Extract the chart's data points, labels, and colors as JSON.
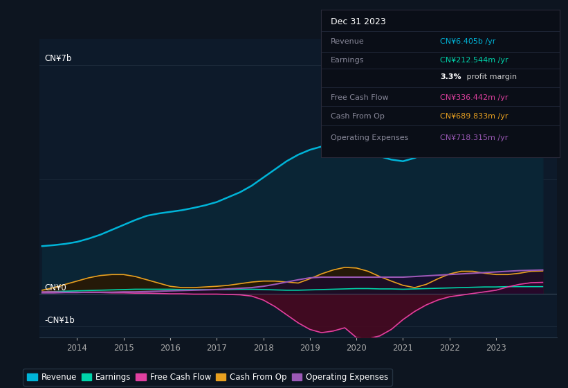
{
  "bg_color": "#0d1520",
  "plot_bg_color": "#0d1a2a",
  "title_box_bg": "#0a0e17",
  "title_box_border": "#2a2a3a",
  "ylabel_top": "CN¥7b",
  "ylabel_zero": "CN¥0",
  "ylabel_bottom": "-CN¥1b",
  "ylim": [
    -1.35,
    7.8
  ],
  "xlim": [
    2013.2,
    2024.3
  ],
  "years": [
    2013.25,
    2013.5,
    2013.75,
    2014.0,
    2014.25,
    2014.5,
    2014.75,
    2015.0,
    2015.25,
    2015.5,
    2015.75,
    2016.0,
    2016.25,
    2016.5,
    2016.75,
    2017.0,
    2017.25,
    2017.5,
    2017.75,
    2018.0,
    2018.25,
    2018.5,
    2018.75,
    2019.0,
    2019.25,
    2019.5,
    2019.75,
    2020.0,
    2020.25,
    2020.5,
    2020.75,
    2021.0,
    2021.25,
    2021.5,
    2021.75,
    2022.0,
    2022.25,
    2022.5,
    2022.75,
    2023.0,
    2023.25,
    2023.5,
    2023.75,
    2024.0
  ],
  "revenue": [
    1.45,
    1.48,
    1.52,
    1.58,
    1.68,
    1.8,
    1.95,
    2.1,
    2.25,
    2.38,
    2.45,
    2.5,
    2.55,
    2.62,
    2.7,
    2.8,
    2.95,
    3.1,
    3.3,
    3.55,
    3.8,
    4.05,
    4.25,
    4.4,
    4.5,
    4.55,
    4.52,
    4.48,
    4.35,
    4.2,
    4.1,
    4.05,
    4.15,
    4.3,
    4.5,
    4.72,
    5.0,
    5.25,
    5.5,
    5.7,
    5.9,
    6.1,
    6.28,
    6.4
  ],
  "earnings": [
    0.05,
    0.06,
    0.07,
    0.08,
    0.09,
    0.1,
    0.11,
    0.12,
    0.13,
    0.13,
    0.13,
    0.13,
    0.12,
    0.12,
    0.12,
    0.12,
    0.12,
    0.13,
    0.13,
    0.12,
    0.11,
    0.1,
    0.1,
    0.11,
    0.12,
    0.13,
    0.14,
    0.15,
    0.15,
    0.14,
    0.14,
    0.13,
    0.14,
    0.15,
    0.16,
    0.17,
    0.18,
    0.19,
    0.2,
    0.2,
    0.21,
    0.21,
    0.21,
    0.21
  ],
  "free_cash_flow": [
    0.05,
    0.05,
    0.04,
    0.04,
    0.03,
    0.03,
    0.02,
    0.02,
    0.01,
    0.01,
    0.0,
    -0.01,
    -0.01,
    -0.02,
    -0.02,
    -0.02,
    -0.03,
    -0.04,
    -0.08,
    -0.2,
    -0.4,
    -0.65,
    -0.9,
    -1.1,
    -1.2,
    -1.15,
    -1.05,
    -1.35,
    -1.38,
    -1.3,
    -1.1,
    -0.8,
    -0.55,
    -0.35,
    -0.2,
    -0.1,
    -0.05,
    0.0,
    0.05,
    0.1,
    0.2,
    0.28,
    0.33,
    0.34
  ],
  "cash_from_op": [
    0.1,
    0.18,
    0.28,
    0.38,
    0.48,
    0.55,
    0.58,
    0.58,
    0.52,
    0.42,
    0.32,
    0.22,
    0.18,
    0.18,
    0.2,
    0.22,
    0.25,
    0.3,
    0.35,
    0.38,
    0.38,
    0.35,
    0.32,
    0.45,
    0.6,
    0.72,
    0.8,
    0.78,
    0.68,
    0.52,
    0.38,
    0.25,
    0.18,
    0.28,
    0.45,
    0.6,
    0.68,
    0.68,
    0.62,
    0.58,
    0.58,
    0.62,
    0.68,
    0.69
  ],
  "operating_expenses": [
    0.02,
    0.02,
    0.03,
    0.03,
    0.04,
    0.04,
    0.04,
    0.05,
    0.05,
    0.06,
    0.07,
    0.08,
    0.09,
    0.1,
    0.11,
    0.12,
    0.14,
    0.16,
    0.18,
    0.22,
    0.28,
    0.35,
    0.42,
    0.48,
    0.5,
    0.5,
    0.5,
    0.5,
    0.5,
    0.5,
    0.5,
    0.5,
    0.52,
    0.54,
    0.56,
    0.58,
    0.6,
    0.62,
    0.64,
    0.66,
    0.68,
    0.7,
    0.71,
    0.72
  ],
  "revenue_color": "#00b4d8",
  "earnings_color": "#00d4aa",
  "free_cash_flow_color": "#e040a0",
  "cash_from_op_color": "#e8a020",
  "operating_expenses_color": "#9b59b6",
  "revenue_fill": "#0a2535",
  "earnings_fill": "#083025",
  "free_cash_flow_fill": "#4a0820",
  "cash_from_op_fill": "#2a1800",
  "operating_expenses_fill": "#1a0830",
  "grid_color": "#1e2d3d",
  "zero_line_color": "#3a4a5a",
  "xtick_labels": [
    "2014",
    "2015",
    "2016",
    "2017",
    "2018",
    "2019",
    "2020",
    "2021",
    "2022",
    "2023"
  ],
  "xtick_positions": [
    2014,
    2015,
    2016,
    2017,
    2018,
    2019,
    2020,
    2021,
    2022,
    2023
  ],
  "legend_items": [
    {
      "label": "Revenue",
      "color": "#00b4d8"
    },
    {
      "label": "Earnings",
      "color": "#00d4aa"
    },
    {
      "label": "Free Cash Flow",
      "color": "#e040a0"
    },
    {
      "label": "Cash From Op",
      "color": "#e8a020"
    },
    {
      "label": "Operating Expenses",
      "color": "#9b59b6"
    }
  ],
  "info_box": {
    "date": "Dec 31 2023",
    "rows": [
      {
        "label": "Revenue",
        "value": "CN¥6.405b /yr",
        "value_color": "#00b4d8"
      },
      {
        "label": "Earnings",
        "value": "CN¥212.544m /yr",
        "value_color": "#00d4aa"
      },
      {
        "label": "",
        "value": "3.3%",
        "value_color": "#ffffff",
        "suffix": " profit margin",
        "suffix_color": "#cccccc"
      },
      {
        "label": "Free Cash Flow",
        "value": "CN¥336.442m /yr",
        "value_color": "#e040a0"
      },
      {
        "label": "Cash From Op",
        "value": "CN¥689.833m /yr",
        "value_color": "#e8a020"
      },
      {
        "label": "Operating Expenses",
        "value": "CN¥718.315m /yr",
        "value_color": "#9b59b6"
      }
    ]
  }
}
